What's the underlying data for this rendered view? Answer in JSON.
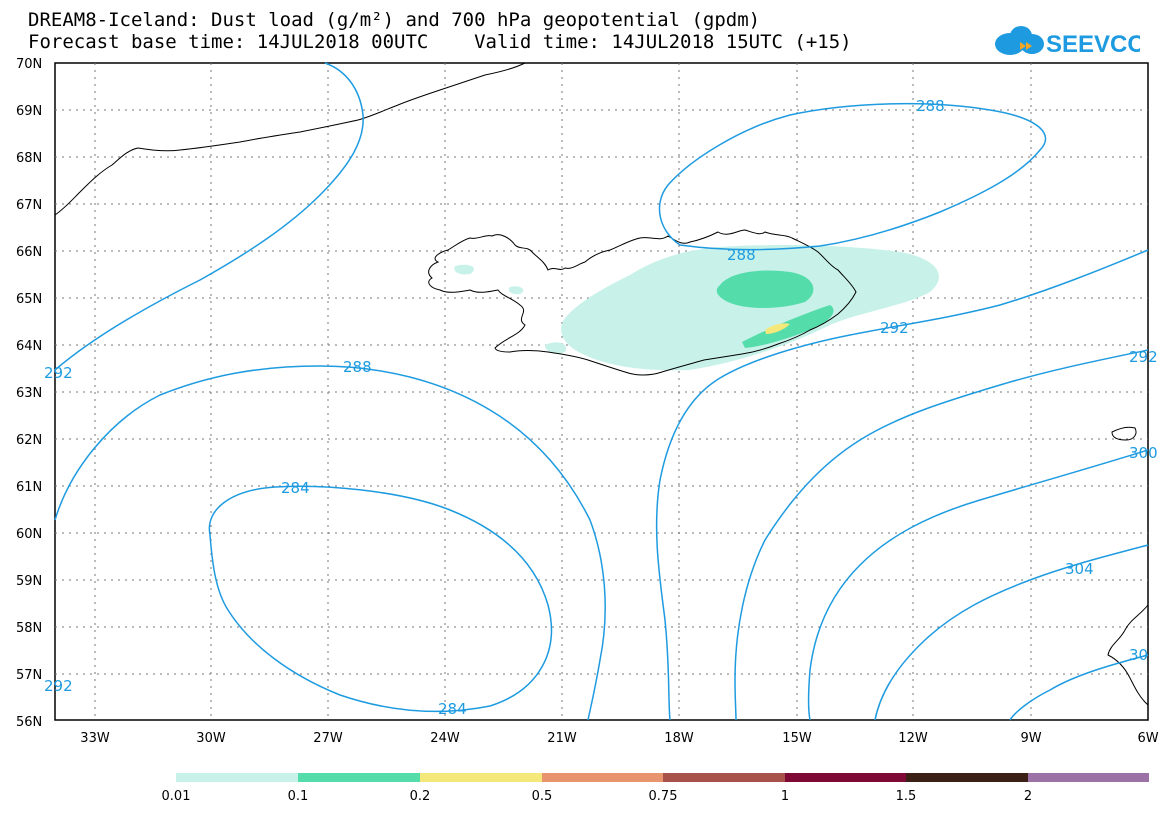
{
  "header": {
    "title_line1": "DREAM8-Iceland: Dust load (g/m²) and 700 hPa geopotential (gpdm)",
    "title_line2": "Forecast base time: 14JUL2018 00UTC    Valid time: 14JUL2018 15UTC (+15)",
    "logo_text": "SEEVCCC"
  },
  "map": {
    "lat_labels": [
      "70N",
      "69N",
      "68N",
      "67N",
      "66N",
      "65N",
      "64N",
      "63N",
      "62N",
      "61N",
      "60N",
      "59N",
      "58N",
      "57N",
      "56N"
    ],
    "lon_labels": [
      "33W",
      "30W",
      "27W",
      "24W",
      "21W",
      "18W",
      "15W",
      "12W",
      "9W",
      "6W"
    ],
    "contour_labels": [
      "288",
      "288",
      "292",
      "292",
      "288",
      "284",
      "284",
      "292",
      "292",
      "300",
      "304",
      "30"
    ],
    "contour_color": "#1e9be0",
    "grid": true
  },
  "colorbar": {
    "labels": [
      "0.01",
      "0.1",
      "0.2",
      "0.5",
      "0.75",
      "1",
      "1.5",
      "2"
    ],
    "colors": [
      "#c8f2e9",
      "#55dcab",
      "#f5e87a",
      "#e8956f",
      "#a8524b",
      "#7e0a35",
      "#3b2016",
      "#9c72a6"
    ]
  }
}
